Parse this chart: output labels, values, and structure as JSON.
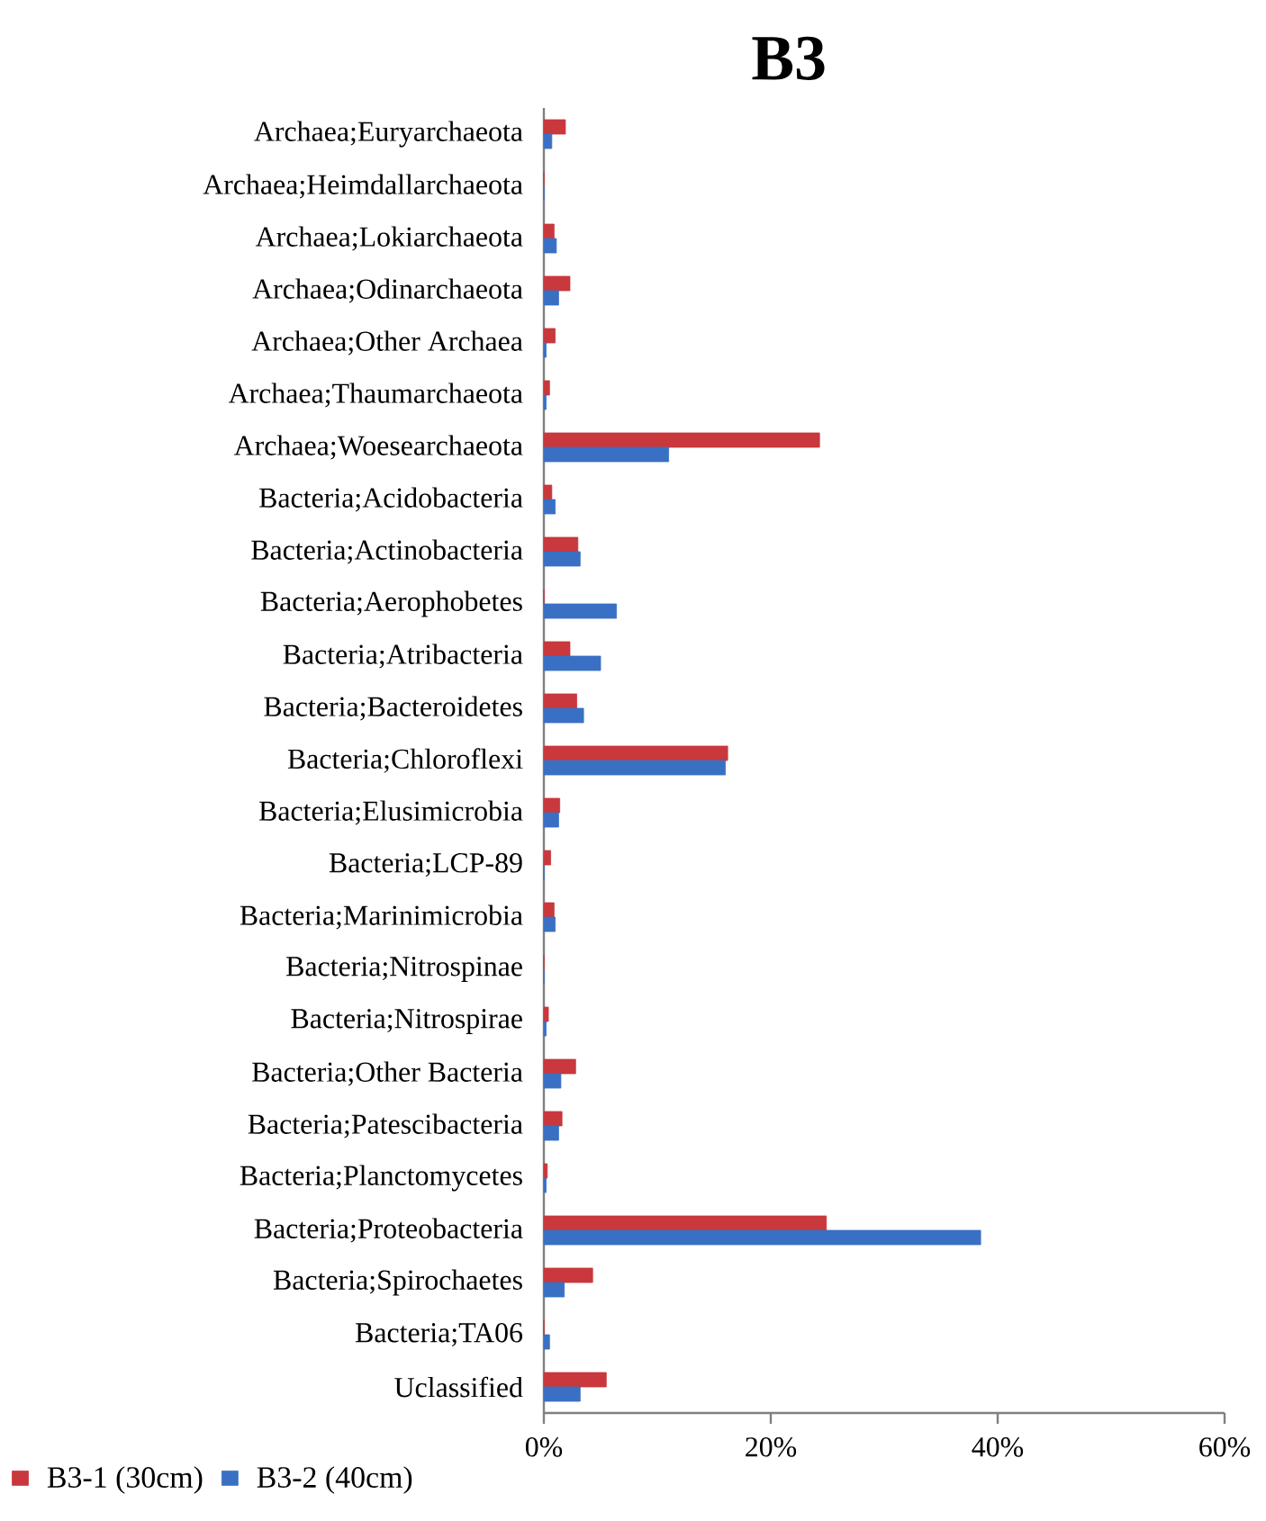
{
  "chart_data": {
    "type": "bar",
    "orientation": "horizontal",
    "title": "B3",
    "categories": [
      "Archaea;Euryarchaeota",
      "Archaea;Heimdallarchaeota",
      "Archaea;Lokiarchaeota",
      "Archaea;Odinarchaeota",
      "Archaea;Other Archaea",
      "Archaea;Thaumarchaeota",
      "Archaea;Woesearchaeota",
      "Bacteria;Acidobacteria",
      "Bacteria;Actinobacteria",
      "Bacteria;Aerophobetes",
      "Bacteria;Atribacteria",
      "Bacteria;Bacteroidetes",
      "Bacteria;Chloroflexi",
      "Bacteria;Elusimicrobia",
      "Bacteria;LCP-89",
      "Bacteria;Marinimicrobia",
      "Bacteria;Nitrospinae",
      "Bacteria;Nitrospirae",
      "Bacteria;Other Bacteria",
      "Bacteria;Patescibacteria",
      "Bacteria;Planctomycetes",
      "Bacteria;Proteobacteria",
      "Bacteria;Spirochaetes",
      "Bacteria;TA06",
      "Uclassified"
    ],
    "series": [
      {
        "name": "B3-1 (30cm)",
        "color": "#c8383c",
        "values": [
          1.9,
          0,
          0.9,
          2.3,
          1.0,
          0.5,
          24.3,
          0.7,
          3.0,
          0,
          2.3,
          2.9,
          16.2,
          1.4,
          0.6,
          0.9,
          0,
          0.4,
          2.8,
          1.6,
          0.3,
          24.9,
          4.3,
          0,
          5.5
        ]
      },
      {
        "name": "B3-2 (40cm)",
        "color": "#3a70c4",
        "values": [
          0.7,
          0,
          1.1,
          1.3,
          0.2,
          0.2,
          11.0,
          1.0,
          3.2,
          6.4,
          5.0,
          3.5,
          16.0,
          1.3,
          0,
          1.0,
          0,
          0.2,
          1.5,
          1.3,
          0.2,
          38.5,
          1.8,
          0.5,
          3.2
        ]
      }
    ],
    "xlim": [
      0,
      60
    ],
    "xticks": [
      {
        "value": 0,
        "label": "0%"
      },
      {
        "value": 20,
        "label": "20%"
      },
      {
        "value": 40,
        "label": "40%"
      },
      {
        "value": 60,
        "label": "60%"
      }
    ],
    "grid": false,
    "legend": "bottom"
  }
}
